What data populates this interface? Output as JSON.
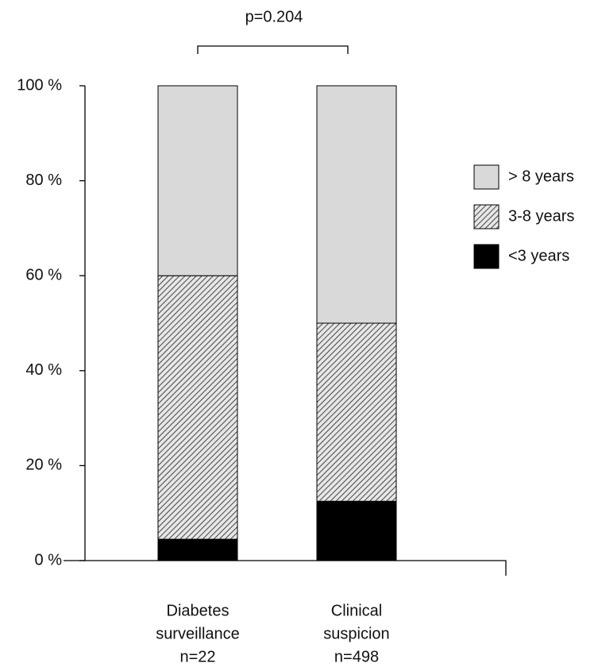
{
  "chart_data": {
    "type": "stacked-bar",
    "annotation": "p=0.204",
    "categories": [
      [
        "Diabetes",
        "surveillance",
        "n=22"
      ],
      [
        "Clinical",
        "suspicion",
        "n=498"
      ]
    ],
    "series": [
      {
        "name": "<3 years",
        "color": "#000000",
        "values": [
          4.5,
          12.5
        ]
      },
      {
        "name": "3-8 years",
        "color": "#a6a6a6",
        "pattern": "diagonal-hatch",
        "values": [
          55.5,
          37.5
        ]
      },
      {
        "name": "> 8 years",
        "color": "#d9d9d9",
        "values": [
          40,
          50
        ]
      }
    ],
    "ylim": [
      0,
      100
    ],
    "yticks": [
      {
        "value": 0,
        "label": "0 %"
      },
      {
        "value": 20,
        "label": "20 %"
      },
      {
        "value": 40,
        "label": "40 %"
      },
      {
        "value": 60,
        "label": "60 %"
      },
      {
        "value": 80,
        "label": "80 %"
      },
      {
        "value": 100,
        "label": "100 %"
      }
    ],
    "legend": "right"
  }
}
